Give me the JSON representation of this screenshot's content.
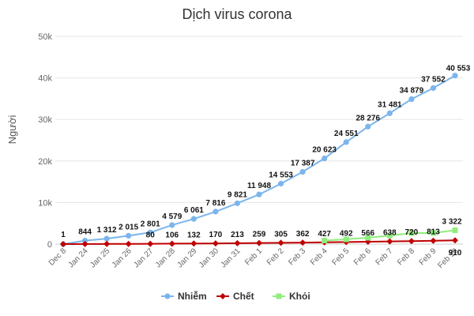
{
  "chart_data": {
    "type": "line",
    "title": "Dịch virus corona",
    "ylabel": "Người",
    "xlabel": "",
    "ylim": [
      0,
      50000
    ],
    "yticks": [
      0,
      10000,
      20000,
      30000,
      40000,
      50000
    ],
    "ytick_labels": [
      "0",
      "10k",
      "20k",
      "30k",
      "40k",
      "50k"
    ],
    "grid": true,
    "legend_position": "bottom",
    "categories": [
      "Dec 8",
      "Jan 24",
      "Jan 25",
      "Jan 26",
      "Jan 27",
      "Jan 28",
      "Jan 29",
      "Jan 30",
      "Jan 31",
      "Feb 1",
      "Feb 2",
      "Feb 3",
      "Feb 4",
      "Feb 5",
      "Feb 6",
      "Feb 7",
      "Feb 8",
      "Feb 9",
      "Feb 10"
    ],
    "series": [
      {
        "name": "Nhiễm",
        "color": "#7cb5ec",
        "marker": "circle",
        "values": [
          1,
          844,
          1312,
          2015,
          2801,
          4579,
          6061,
          7816,
          9821,
          11948,
          14553,
          17387,
          20623,
          24551,
          28276,
          31481,
          34879,
          37552,
          40553
        ],
        "labels": [
          "1",
          "844",
          "1 312",
          "2 015",
          "2 801",
          "4 579",
          "6 061",
          "7 816",
          "9 821",
          "11 948",
          "14 553",
          "17 387",
          "20 623",
          "24 551",
          "28 276",
          "31 481",
          "34 879",
          "37 552",
          "40 553"
        ]
      },
      {
        "name": "Chết",
        "color": "#c00000",
        "marker": "diamond",
        "values": [
          0,
          25,
          41,
          56,
          80,
          106,
          132,
          170,
          213,
          259,
          305,
          362,
          427,
          492,
          566,
          638,
          720,
          813,
          910
        ],
        "labels": [
          "",
          "",
          "",
          "",
          "80",
          "106",
          "132",
          "170",
          "213",
          "259",
          "305",
          "362",
          "427",
          "492",
          "566",
          "638",
          "720",
          "813",
          "910"
        ]
      },
      {
        "name": "Khỏi",
        "color": "#90ed7d",
        "marker": "square",
        "start_index": 12,
        "values": [
          null,
          null,
          null,
          null,
          null,
          null,
          null,
          null,
          null,
          null,
          null,
          null,
          852,
          1153,
          1540,
          2050,
          2649,
          2686,
          3322
        ],
        "labels": [
          "",
          "",
          "",
          "",
          "",
          "",
          "",
          "",
          "",
          "",
          "",
          "",
          "",
          "",
          "",
          "",
          "",
          "",
          "3 322"
        ]
      }
    ]
  }
}
